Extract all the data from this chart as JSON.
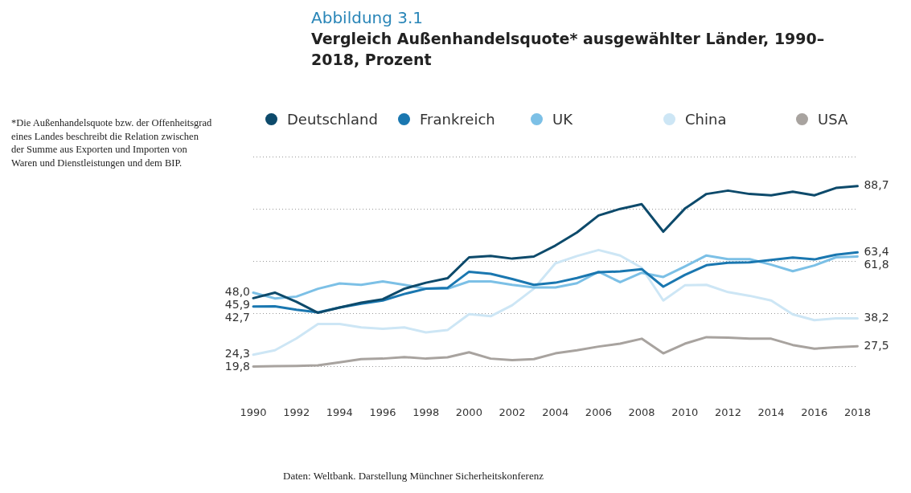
{
  "chart_data": {
    "type": "line",
    "subtitle": "Abbildung 3.1",
    "title": "Vergleich Außenhandelsquote* ausgewählter Länder, 1990–2018, Prozent",
    "categories": [
      "1990",
      null,
      "1992",
      null,
      "1994",
      null,
      "1996",
      null,
      "1998",
      null,
      "2000",
      null,
      "2002",
      null,
      "2004",
      null,
      "2006",
      null,
      "2008",
      null,
      "2010",
      null,
      "2012",
      null,
      "2014",
      null,
      "2016",
      null,
      "2018"
    ],
    "series": [
      {
        "name": "Deutschland",
        "color": "#0d4a6b",
        "values": [
          45.9,
          48.0,
          44.5,
          40.3,
          42.3,
          44.2,
          45.5,
          49.5,
          51.8,
          53.5,
          61.5,
          62,
          61,
          61.8,
          66,
          71,
          77.5,
          80,
          81.8,
          71.3,
          80.1,
          85.7,
          87,
          85.7,
          85.2,
          86.6,
          85.2,
          88,
          88.7
        ],
        "value_labels": [
          "45,9",
          null,
          null,
          null,
          null,
          null,
          null,
          null,
          null,
          null,
          null,
          null,
          null,
          null,
          null,
          null,
          null,
          null,
          null,
          null,
          null,
          null,
          null,
          null,
          null,
          null,
          null,
          null,
          "88,7"
        ]
      },
      {
        "name": "Frankreich",
        "color": "#1a77b0",
        "values": [
          42.7,
          42.8,
          41.5,
          40.5,
          42.3,
          43.8,
          45,
          47.5,
          49.5,
          49.8,
          56,
          55.2,
          53.2,
          51,
          51.8,
          53.6,
          55.8,
          56.1,
          57,
          50.3,
          54.8,
          58.5,
          59.4,
          59.6,
          60.5,
          61.4,
          60.7,
          62.5,
          63.4
        ],
        "value_labels": [
          "42,7",
          null,
          null,
          null,
          null,
          null,
          null,
          null,
          null,
          null,
          null,
          null,
          null,
          null,
          null,
          null,
          null,
          null,
          null,
          null,
          null,
          null,
          null,
          null,
          null,
          null,
          null,
          null,
          "63,4"
        ]
      },
      {
        "name": "UK",
        "color": "#7cc0e6",
        "values": [
          48.0,
          45.8,
          46.5,
          49.5,
          51.5,
          51,
          52.3,
          51,
          49.5,
          49.5,
          52.3,
          52.3,
          51,
          50,
          50,
          51.6,
          56,
          52,
          55.6,
          54,
          58,
          62.2,
          60.8,
          60.8,
          58.7,
          56.2,
          58.4,
          61.5,
          61.8
        ],
        "value_labels": [
          "48,0",
          null,
          null,
          null,
          null,
          null,
          null,
          null,
          null,
          null,
          null,
          null,
          null,
          null,
          null,
          null,
          null,
          null,
          null,
          null,
          null,
          null,
          null,
          null,
          null,
          null,
          null,
          null,
          "61,8"
        ]
      },
      {
        "name": "China",
        "color": "#cde6f5",
        "values": [
          24.3,
          26,
          30.5,
          36,
          36,
          34.7,
          34.2,
          34.7,
          32.8,
          33.7,
          39.8,
          39,
          43.2,
          49.5,
          59.2,
          62,
          64.3,
          62.2,
          57.5,
          45,
          50.8,
          51,
          48.2,
          46.8,
          45,
          39.7,
          37.5,
          38.2,
          38.2
        ],
        "value_labels": [
          "24,3",
          null,
          null,
          null,
          null,
          null,
          null,
          null,
          null,
          null,
          null,
          null,
          null,
          null,
          null,
          null,
          null,
          null,
          null,
          null,
          null,
          null,
          null,
          null,
          null,
          null,
          null,
          null,
          "38,2"
        ]
      },
      {
        "name": "USA",
        "color": "#a8a39f",
        "values": [
          19.8,
          19.9,
          20,
          20.2,
          21.4,
          22.6,
          22.8,
          23.4,
          22.8,
          23.3,
          25.2,
          22.8,
          22.2,
          22.6,
          24.8,
          26,
          27.4,
          28.5,
          30.4,
          24.8,
          28.5,
          31,
          30.8,
          30.4,
          30.4,
          28,
          26.6,
          27.1,
          27.5
        ],
        "value_labels": [
          "19,8",
          null,
          null,
          null,
          null,
          null,
          null,
          null,
          null,
          null,
          null,
          null,
          null,
          null,
          null,
          null,
          null,
          null,
          null,
          null,
          null,
          null,
          null,
          null,
          null,
          null,
          null,
          null,
          "27,5"
        ]
      }
    ],
    "ylim": [
      19.8,
      100
    ],
    "yticks": [
      {
        "value": 19.8,
        "label": null
      },
      {
        "value": 40,
        "label": null
      },
      {
        "value": 60,
        "label": null
      },
      {
        "value": 80,
        "label": null
      },
      {
        "value": 100,
        "label": null
      }
    ],
    "grid": "y",
    "legend": "top",
    "tick_labels": "x",
    "marker": "none",
    "line_style": "solid",
    "annotations": [
      "*Die Außenhandelsquote bzw. der Offenheitsgrad eines Landes beschreibt die Relation zwischen der Summe aus Exporten und Importen von Waren und Dienstleistungen und dem BIP.",
      "Daten: Weltbank. Darstellung Münchner Sicherheitskonferenz"
    ]
  }
}
